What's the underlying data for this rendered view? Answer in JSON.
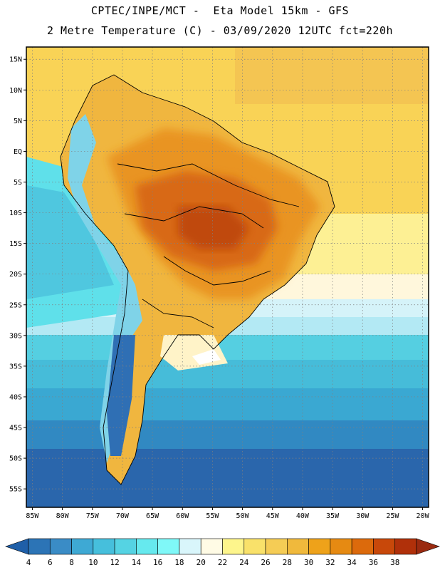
{
  "header": {
    "line1": "CPTEC/INPE/MCT -  Eta Model 15km - GFS",
    "line2": "2 Metre Temperature (C) - 03/09/2020 12UTC fct=220h"
  },
  "map": {
    "lon_range": [
      -86,
      -19
    ],
    "lat_range": [
      -58,
      17
    ],
    "lat_labels": [
      "15N",
      "10N",
      "5N",
      "EQ",
      "5S",
      "10S",
      "15S",
      "20S",
      "25S",
      "30S",
      "35S",
      "40S",
      "45S",
      "50S",
      "55S"
    ],
    "lat_values": [
      15,
      10,
      5,
      0,
      -5,
      -10,
      -15,
      -20,
      -25,
      -30,
      -35,
      -40,
      -45,
      -50,
      -55
    ],
    "lon_labels": [
      "85W",
      "80W",
      "75W",
      "70W",
      "65W",
      "60W",
      "55W",
      "50W",
      "45W",
      "40W",
      "35W",
      "30W",
      "25W",
      "20W"
    ],
    "lon_values": [
      -85,
      -80,
      -75,
      -70,
      -65,
      -60,
      -55,
      -50,
      -45,
      -40,
      -35,
      -30,
      -25,
      -20
    ]
  },
  "colorbar": {
    "labels": [
      "4",
      "6",
      "8",
      "10",
      "12",
      "14",
      "16",
      "18",
      "20",
      "22",
      "24",
      "26",
      "28",
      "30",
      "32",
      "34",
      "36",
      "38"
    ],
    "colors": [
      "#1f5fa8",
      "#2c74b6",
      "#3a8cc6",
      "#3ea9d4",
      "#46bfdc",
      "#55d3e3",
      "#66e9ee",
      "#7ff8f8",
      "#d9f6fb",
      "#fffbe5",
      "#fdf58c",
      "#f9e16a",
      "#f5cc55",
      "#f0b93c",
      "#eea21a",
      "#e68a12",
      "#dc6a0c",
      "#c8480a",
      "#b0300a",
      "#9a2a10"
    ]
  }
}
